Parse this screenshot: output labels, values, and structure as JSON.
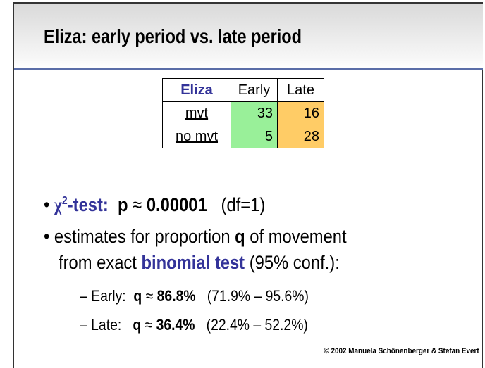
{
  "title": "Eliza: early period vs. late period",
  "table": {
    "header": [
      "Eliza",
      "Early",
      "Late"
    ],
    "rows": [
      [
        "mvt",
        33,
        16
      ],
      [
        "no mvt",
        5,
        28
      ]
    ]
  },
  "bullets": [
    {
      "parts": [
        "χ",
        "2",
        "-test:",
        "p",
        "≈",
        "0.00001",
        "(df=1)"
      ]
    },
    {
      "parts": [
        "estimates for proportion",
        "q",
        "of movement",
        "from exact",
        "binomial test",
        "(95% conf.):"
      ],
      "sub": [
        {
          "parts": [
            "Early:",
            "q",
            "≈",
            "86.8%",
            "(71.9% – 95.6%)"
          ]
        },
        {
          "parts": [
            "Late:",
            "q",
            "≈",
            "36.4%",
            "(22.4% – 52.2%)"
          ]
        }
      ]
    }
  ],
  "footer": "© 2002 Manuela Schönenberger & Stefan Evert"
}
